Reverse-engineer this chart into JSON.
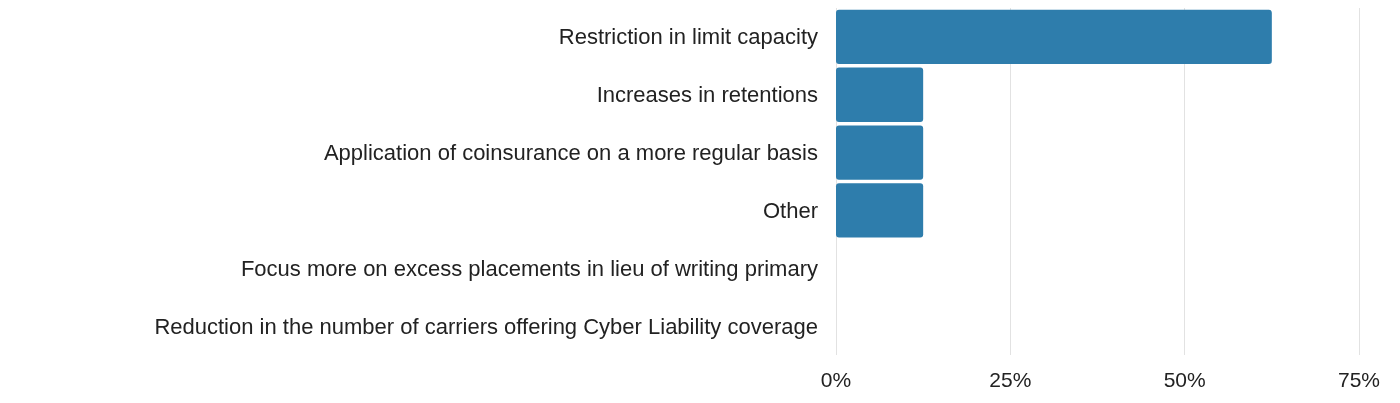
{
  "chart_data": {
    "type": "bar",
    "orientation": "horizontal",
    "categories": [
      "Restriction in limit capacity",
      "Increases in retentions",
      "Application of coinsurance on a more regular basis",
      "Other",
      "Focus more on excess placements in lieu of writing primary",
      "Reduction in the number of carriers offering Cyber Liability coverage"
    ],
    "values": [
      62.5,
      12.5,
      12.5,
      12.5,
      0,
      0
    ],
    "color": "#2e7dac",
    "xlim": [
      0,
      75
    ],
    "xticks": [
      {
        "value": 0,
        "label": "0%"
      },
      {
        "value": 25,
        "label": "25%"
      },
      {
        "value": 50,
        "label": "50%"
      },
      {
        "value": 75,
        "label": "75%"
      }
    ],
    "grid": "x"
  }
}
